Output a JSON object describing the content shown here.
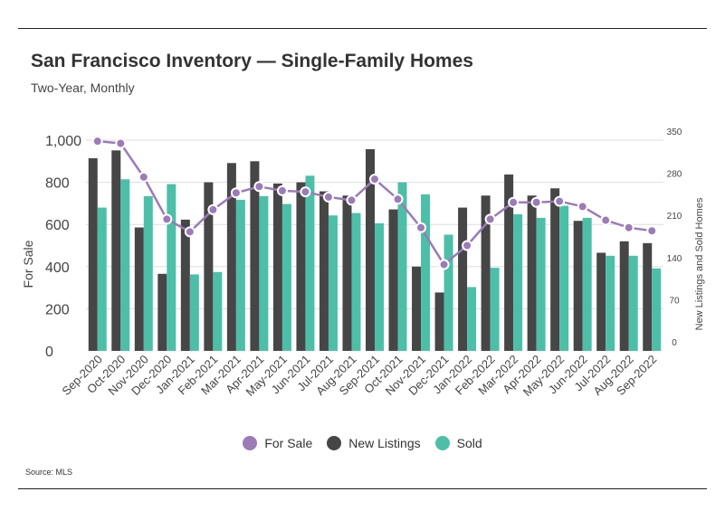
{
  "header": {
    "title": "San Francisco Inventory — Single-Family Homes",
    "subtitle": "Two-Year, Monthly"
  },
  "footer": {
    "source": "Source: MLS"
  },
  "colors": {
    "for_sale": "#9b7bb8",
    "new_listings": "#464646",
    "sold": "#4dbfa8",
    "grid": "#dddddd"
  },
  "chart_data": {
    "type": "bar",
    "categories": [
      "Sep-2020",
      "Oct-2020",
      "Nov-2020",
      "Dec-2020",
      "Jan-2021",
      "Feb-2021",
      "Mar-2021",
      "Apr-2021",
      "May-2021",
      "Jun-2021",
      "Jul-2021",
      "Aug-2021",
      "Sep-2021",
      "Oct-2021",
      "Nov-2021",
      "Dec-2021",
      "Jan-2022",
      "Feb-2022",
      "Mar-2022",
      "Apr-2022",
      "May-2022",
      "Jun-2022",
      "Jul-2022",
      "Aug-2022",
      "Sep-2022"
    ],
    "ylabel_left": "For Sale",
    "ylabel_right": "New Listings and Sold Homes",
    "ylim_left": [
      0,
      1000
    ],
    "yticks_left": [
      "0",
      "200",
      "400",
      "600",
      "800",
      "1,000"
    ],
    "ylim_right": [
      0,
      350
    ],
    "yticks_right": [
      "0",
      "70",
      "140",
      "210",
      "280",
      "350"
    ],
    "grid": true,
    "legend_position": "bottom",
    "series": [
      {
        "name": "For Sale",
        "type": "line",
        "axis": "left",
        "values": [
          995,
          985,
          825,
          625,
          565,
          670,
          750,
          780,
          760,
          755,
          730,
          715,
          815,
          720,
          585,
          410,
          500,
          625,
          705,
          705,
          710,
          685,
          620,
          585,
          570
        ]
      },
      {
        "name": "New Listings",
        "type": "bar",
        "axis": "right",
        "values": [
          320,
          333,
          205,
          128,
          218,
          280,
          312,
          315,
          278,
          280,
          265,
          258,
          335,
          235,
          140,
          97,
          238,
          258,
          293,
          258,
          270,
          216,
          163,
          182,
          179
        ]
      },
      {
        "name": "Sold",
        "type": "bar",
        "axis": "right",
        "values": [
          238,
          285,
          257,
          277,
          127,
          131,
          251,
          257,
          244,
          291,
          225,
          229,
          212,
          280,
          260,
          193,
          106,
          138,
          227,
          221,
          241,
          221,
          158,
          158,
          137
        ]
      }
    ]
  }
}
